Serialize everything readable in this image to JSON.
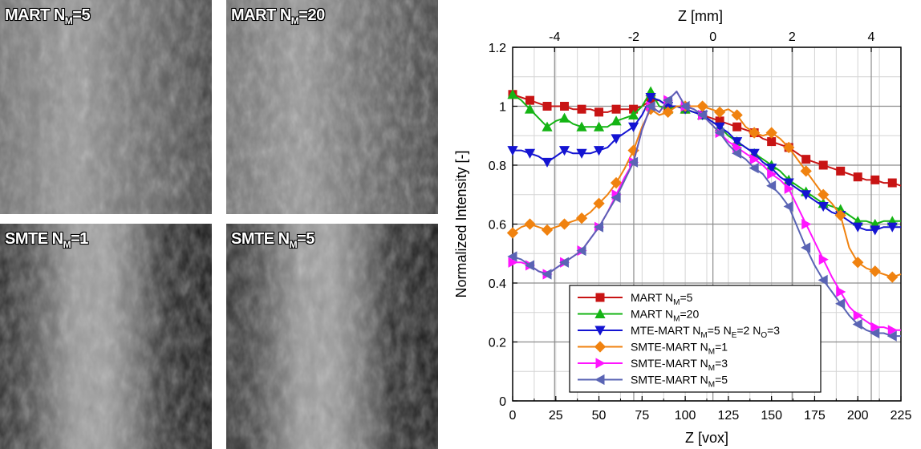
{
  "panels": [
    {
      "label_main": "MART N",
      "label_sub": "M",
      "label_tail": "=5",
      "tone": "mid"
    },
    {
      "label_main": "MART N",
      "label_sub": "M",
      "label_tail": "=20",
      "tone": "mid"
    },
    {
      "label_main": "SMTE N",
      "label_sub": "M",
      "label_tail": "=1",
      "tone": "band"
    },
    {
      "label_main": "SMTE N",
      "label_sub": "M",
      "label_tail": "=5",
      "tone": "band"
    }
  ],
  "chart_data": {
    "type": "line",
    "xlabel": "Z [vox]",
    "ylabel": "Normalized Intensity [-]",
    "top_axis_label": "Z [mm]",
    "xlim": [
      0,
      225
    ],
    "ylim": [
      0,
      1.2
    ],
    "top_xlim": [
      -5.06,
      4.75
    ],
    "x_ticks": [
      0,
      25,
      50,
      75,
      100,
      125,
      150,
      175,
      200,
      225
    ],
    "y_ticks": [
      0,
      0.2,
      0.4,
      0.6,
      0.8,
      1,
      1.2
    ],
    "top_ticks": [
      -4,
      -2,
      0,
      2,
      4
    ],
    "grid": true,
    "legend_position": "bottom-center",
    "series": [
      {
        "name": "MART N",
        "sub": "M",
        "tail": "=5",
        "color": "#c81414",
        "marker": "square",
        "x": [
          0,
          5,
          10,
          15,
          20,
          25,
          30,
          35,
          40,
          45,
          50,
          55,
          60,
          65,
          70,
          75,
          80,
          85,
          90,
          95,
          100,
          105,
          110,
          115,
          120,
          125,
          130,
          135,
          140,
          145,
          150,
          155,
          160,
          165,
          170,
          175,
          180,
          185,
          190,
          195,
          200,
          205,
          210,
          215,
          220,
          225
        ],
        "y": [
          1.04,
          1.03,
          1.02,
          1.01,
          1.0,
          1.0,
          1.0,
          0.99,
          0.99,
          0.99,
          0.98,
          0.98,
          0.99,
          0.99,
          0.99,
          1.0,
          1.02,
          1.02,
          1.0,
          1.0,
          0.99,
          0.98,
          0.97,
          0.96,
          0.95,
          0.94,
          0.93,
          0.92,
          0.91,
          0.89,
          0.88,
          0.87,
          0.86,
          0.84,
          0.82,
          0.81,
          0.8,
          0.79,
          0.78,
          0.77,
          0.76,
          0.75,
          0.75,
          0.74,
          0.74,
          0.73
        ],
        "marker_every": 2
      },
      {
        "name": "MART N",
        "sub": "M",
        "tail": "=20",
        "color": "#14b414",
        "marker": "triangle-up",
        "x": [
          0,
          5,
          10,
          15,
          20,
          25,
          30,
          35,
          40,
          45,
          50,
          55,
          60,
          65,
          70,
          75,
          80,
          85,
          90,
          95,
          100,
          105,
          110,
          115,
          120,
          125,
          130,
          135,
          140,
          145,
          150,
          155,
          160,
          165,
          170,
          175,
          180,
          185,
          190,
          195,
          200,
          205,
          210,
          215,
          220,
          225
        ],
        "y": [
          1.04,
          1.02,
          0.99,
          0.96,
          0.93,
          0.95,
          0.96,
          0.94,
          0.93,
          0.93,
          0.93,
          0.93,
          0.95,
          0.96,
          0.97,
          1.0,
          1.05,
          1.0,
          0.99,
          1.0,
          0.99,
          0.98,
          0.97,
          0.95,
          0.93,
          0.9,
          0.88,
          0.86,
          0.84,
          0.82,
          0.8,
          0.78,
          0.75,
          0.73,
          0.71,
          0.69,
          0.67,
          0.66,
          0.65,
          0.63,
          0.61,
          0.61,
          0.6,
          0.61,
          0.61,
          0.61
        ],
        "marker_every": 2
      },
      {
        "name": "MTE-MART N",
        "sub": "M",
        "tail": "=5 N",
        "sub2": "E",
        "tail2": "=2 N",
        "sub3": "O",
        "tail3": "=3",
        "color": "#1414d2",
        "marker": "triangle-down",
        "x": [
          0,
          5,
          10,
          15,
          20,
          25,
          30,
          35,
          40,
          45,
          50,
          55,
          60,
          65,
          70,
          75,
          80,
          85,
          90,
          95,
          100,
          105,
          110,
          115,
          120,
          125,
          130,
          135,
          140,
          145,
          150,
          155,
          160,
          165,
          170,
          175,
          180,
          185,
          190,
          195,
          200,
          205,
          210,
          215,
          220,
          225
        ],
        "y": [
          0.85,
          0.85,
          0.84,
          0.83,
          0.81,
          0.83,
          0.85,
          0.84,
          0.84,
          0.84,
          0.85,
          0.86,
          0.89,
          0.91,
          0.93,
          0.97,
          1.03,
          1.02,
          1.0,
          1.0,
          0.99,
          0.98,
          0.97,
          0.95,
          0.93,
          0.91,
          0.88,
          0.86,
          0.84,
          0.81,
          0.79,
          0.76,
          0.74,
          0.72,
          0.7,
          0.68,
          0.66,
          0.64,
          0.63,
          0.61,
          0.59,
          0.58,
          0.58,
          0.59,
          0.59,
          0.59
        ],
        "marker_every": 2
      },
      {
        "name": "SMTE-MART N",
        "sub": "M",
        "tail": "=1",
        "color": "#f0820f",
        "marker": "diamond",
        "x": [
          0,
          5,
          10,
          15,
          20,
          25,
          30,
          35,
          40,
          45,
          50,
          55,
          60,
          65,
          70,
          75,
          80,
          85,
          90,
          95,
          100,
          105,
          110,
          115,
          120,
          125,
          130,
          135,
          140,
          145,
          150,
          155,
          160,
          165,
          170,
          175,
          180,
          185,
          190,
          195,
          200,
          205,
          210,
          215,
          220,
          225
        ],
        "y": [
          0.57,
          0.59,
          0.6,
          0.59,
          0.58,
          0.59,
          0.6,
          0.61,
          0.62,
          0.64,
          0.67,
          0.7,
          0.74,
          0.79,
          0.85,
          0.93,
          0.99,
          0.97,
          0.98,
          1.0,
          1.0,
          1.0,
          1.0,
          0.99,
          0.98,
          0.99,
          0.97,
          0.93,
          0.91,
          0.9,
          0.91,
          0.89,
          0.86,
          0.82,
          0.78,
          0.74,
          0.7,
          0.67,
          0.63,
          0.52,
          0.47,
          0.45,
          0.44,
          0.43,
          0.42,
          0.43
        ],
        "marker_every": 2
      },
      {
        "name": "SMTE-MART N",
        "sub": "M",
        "tail": "=3",
        "color": "#ff14ff",
        "marker": "triangle-right",
        "x": [
          0,
          5,
          10,
          15,
          20,
          25,
          30,
          35,
          40,
          45,
          50,
          55,
          60,
          65,
          70,
          75,
          80,
          85,
          90,
          95,
          100,
          105,
          110,
          115,
          120,
          125,
          130,
          135,
          140,
          145,
          150,
          155,
          160,
          165,
          170,
          175,
          180,
          185,
          190,
          195,
          200,
          205,
          210,
          215,
          220,
          225
        ],
        "y": [
          0.47,
          0.47,
          0.46,
          0.44,
          0.43,
          0.45,
          0.47,
          0.49,
          0.51,
          0.55,
          0.59,
          0.64,
          0.7,
          0.76,
          0.81,
          0.92,
          1.0,
          0.98,
          1.02,
          1.05,
          1.0,
          0.99,
          0.97,
          0.94,
          0.91,
          0.88,
          0.86,
          0.84,
          0.82,
          0.8,
          0.77,
          0.75,
          0.72,
          0.66,
          0.6,
          0.54,
          0.48,
          0.42,
          0.37,
          0.32,
          0.29,
          0.27,
          0.25,
          0.25,
          0.24,
          0.24
        ],
        "marker_every": 2
      },
      {
        "name": "SMTE-MART N",
        "sub": "M",
        "tail": "=5",
        "color": "#5a64b4",
        "marker": "triangle-left",
        "x": [
          0,
          5,
          10,
          15,
          20,
          25,
          30,
          35,
          40,
          45,
          50,
          55,
          60,
          65,
          70,
          75,
          80,
          85,
          90,
          95,
          100,
          105,
          110,
          115,
          120,
          125,
          130,
          135,
          140,
          145,
          150,
          155,
          160,
          165,
          170,
          175,
          180,
          185,
          190,
          195,
          200,
          205,
          210,
          215,
          220,
          225
        ],
        "y": [
          0.49,
          0.48,
          0.46,
          0.44,
          0.43,
          0.45,
          0.47,
          0.49,
          0.51,
          0.55,
          0.59,
          0.64,
          0.69,
          0.75,
          0.81,
          0.92,
          1.0,
          0.98,
          1.02,
          1.05,
          1.0,
          0.99,
          0.97,
          0.94,
          0.91,
          0.87,
          0.84,
          0.82,
          0.79,
          0.77,
          0.73,
          0.7,
          0.66,
          0.59,
          0.52,
          0.46,
          0.41,
          0.37,
          0.33,
          0.29,
          0.26,
          0.24,
          0.23,
          0.23,
          0.22,
          0.22
        ],
        "marker_every": 2
      }
    ]
  }
}
